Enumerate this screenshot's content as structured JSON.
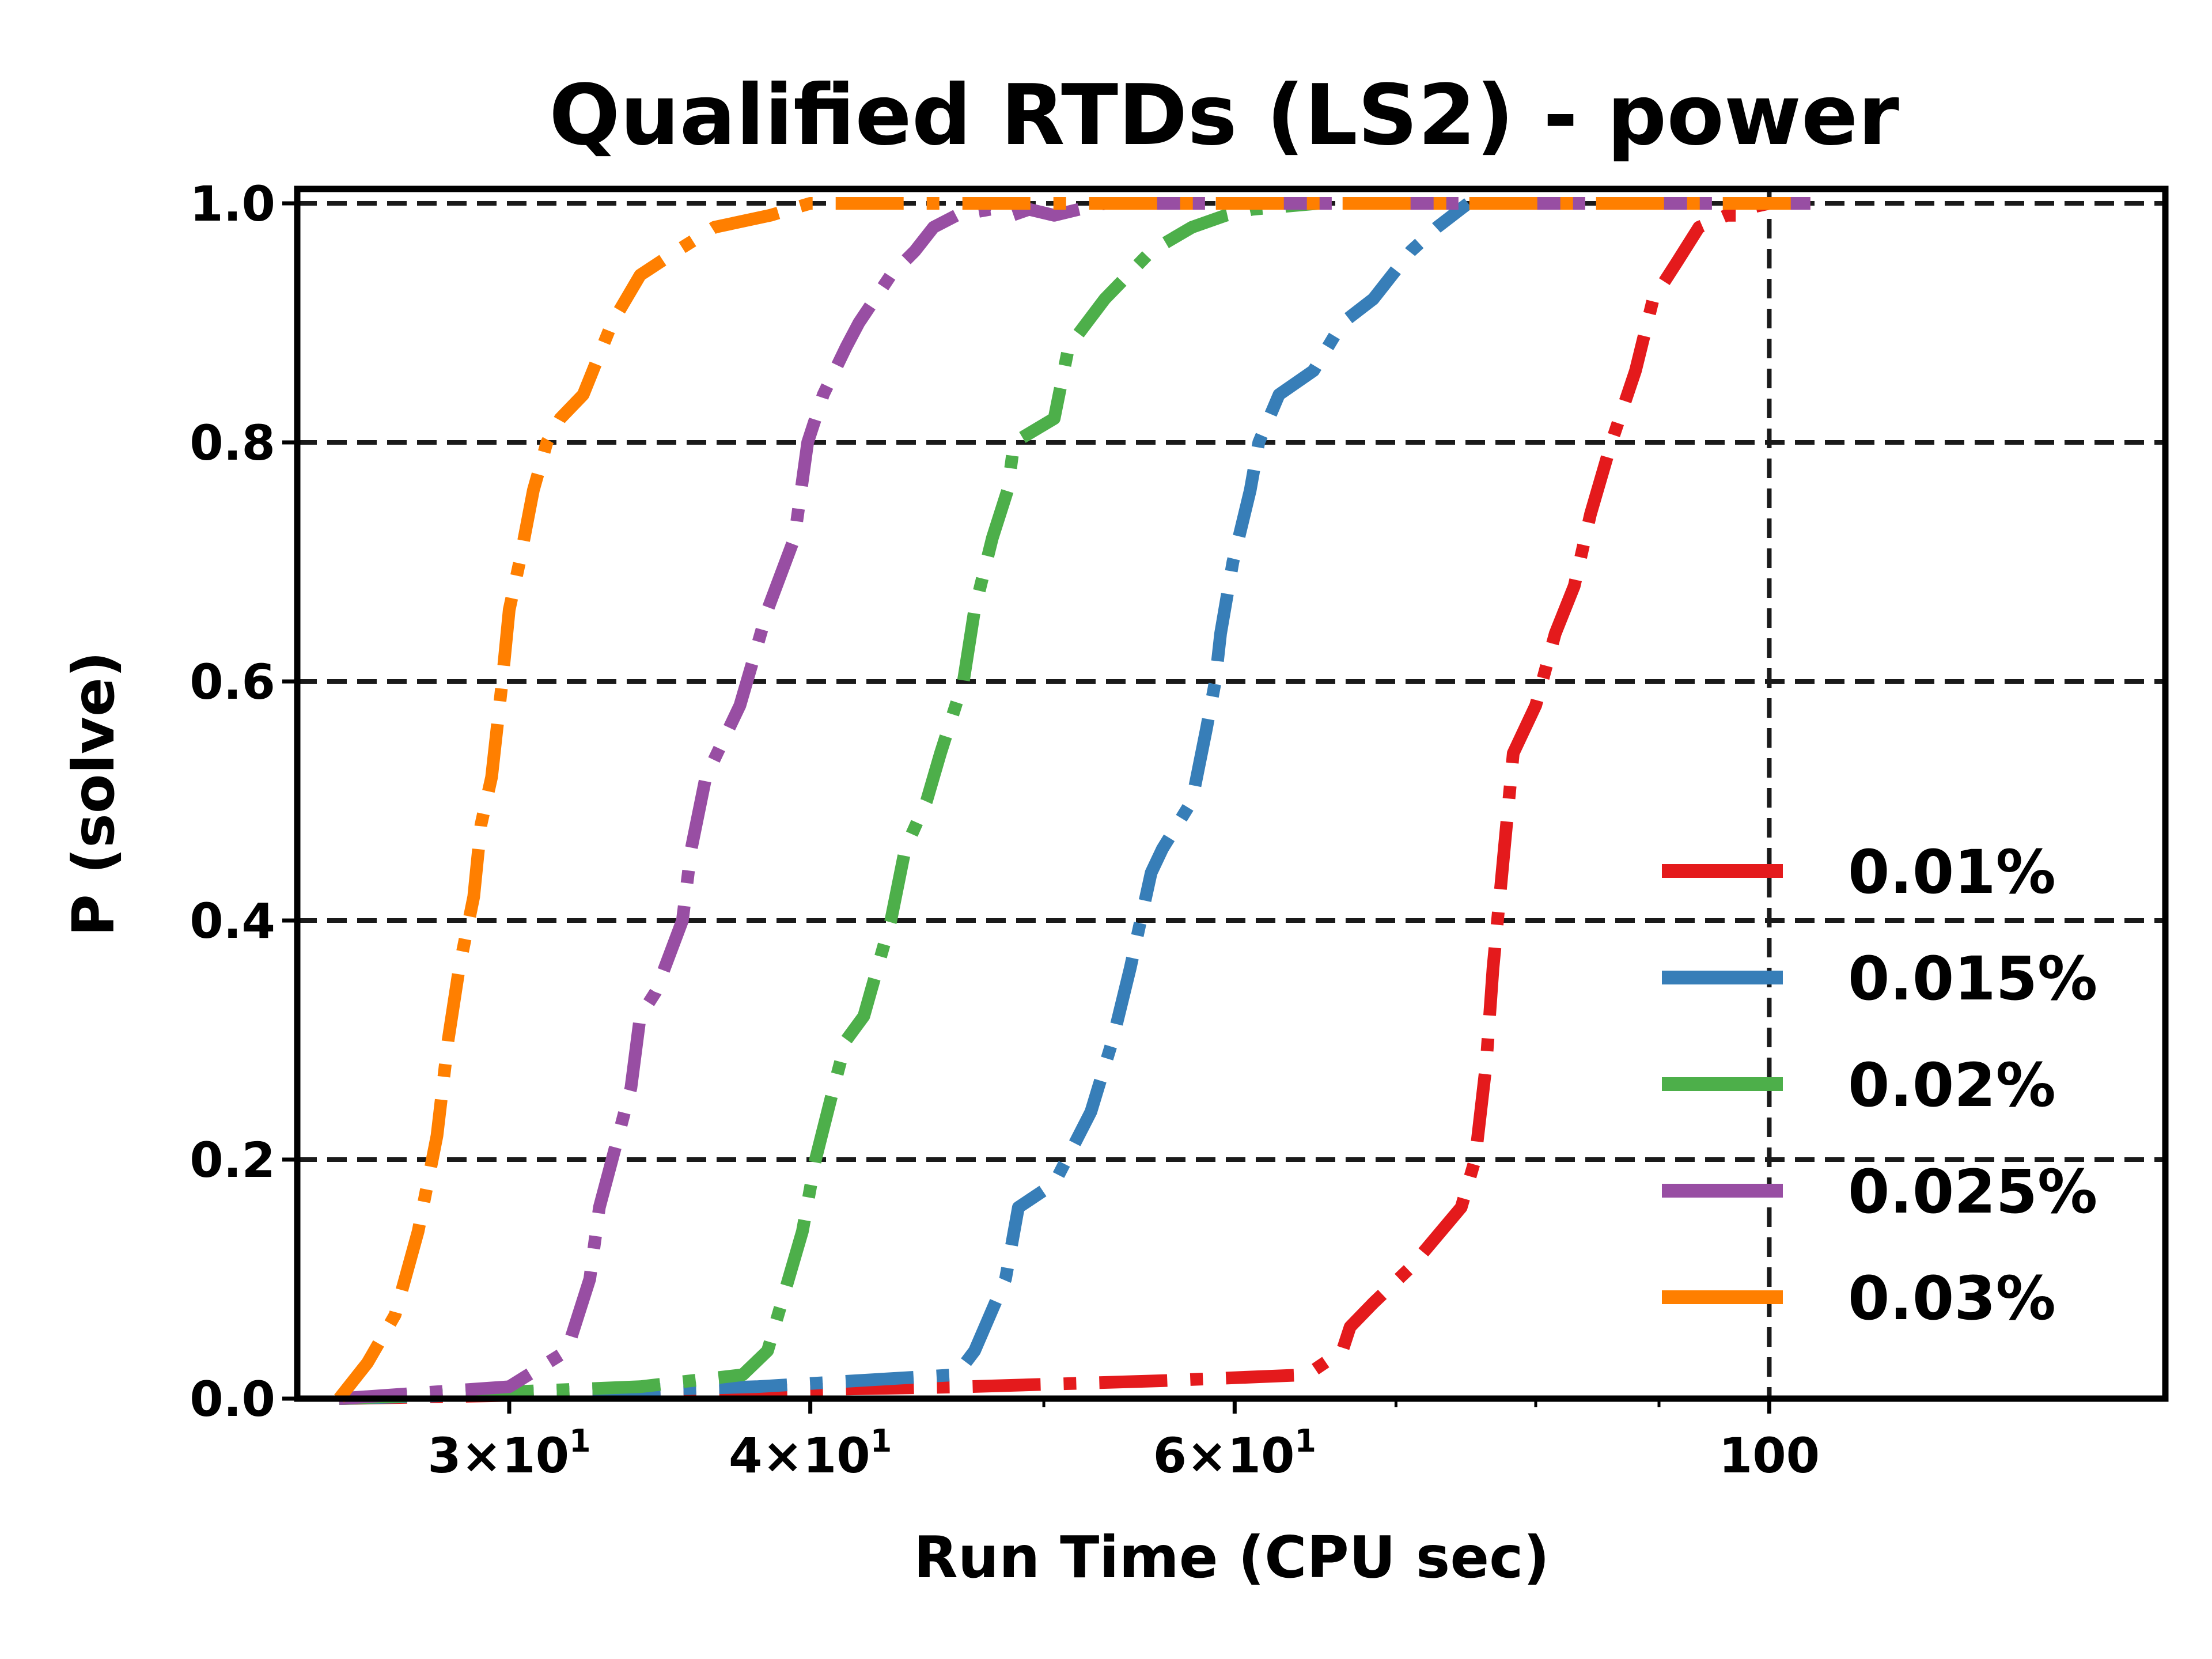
{
  "chart_data": {
    "type": "line",
    "title": "Qualified RTDs (LS2) - power",
    "xlabel": "Run Time (CPU sec)",
    "ylabel": "P (solve)",
    "xscale": "log",
    "xlim": [
      24.5,
      146
    ],
    "ylim": [
      0,
      1.0
    ],
    "grid": "dashed at y ticks and at x = 100",
    "legend_position": "lower-right",
    "xticks": [
      {
        "value": 30,
        "label_base": "3",
        "label_mult": "×10",
        "label_exp": "1"
      },
      {
        "value": 40,
        "label_base": "4",
        "label_mult": "×10",
        "label_exp": "1"
      },
      {
        "value": 60,
        "label_base": "6",
        "label_mult": "×10",
        "label_exp": "1"
      },
      {
        "value": 100,
        "label": "100"
      }
    ],
    "yticks": [
      "0.0",
      "0.2",
      "0.4",
      "0.6",
      "0.8",
      "1.0"
    ],
    "series": [
      {
        "name": "0.01%",
        "color": "#e41a1c",
        "x": [
          25.5,
          46.5,
          56,
          64.3,
          66.5,
          67,
          68.5,
          71,
          74.5,
          75.5,
          76.3,
          76.8,
          77.3,
          78.3,
          80,
          81.5,
          83,
          84.3,
          86,
          88,
          89.5,
          91.5,
          93.5,
          96,
          97,
          97.5,
          100,
          104
        ],
        "y": [
          0.0,
          0.01,
          0.015,
          0.02,
          0.04,
          0.06,
          0.08,
          0.11,
          0.16,
          0.2,
          0.28,
          0.36,
          0.42,
          0.54,
          0.58,
          0.64,
          0.68,
          0.74,
          0.8,
          0.86,
          0.92,
          0.95,
          0.98,
          0.99,
          0.99,
          0.995,
          1.0,
          1.0
        ]
      },
      {
        "name": "0.015%",
        "color": "#377eb8",
        "x": [
          25.5,
          38,
          46,
          46.8,
          48.2,
          48.8,
          50.5,
          52.3,
          53.4,
          54.3,
          55.4,
          56,
          57.6,
          58.4,
          58.9,
          59.2,
          59.9,
          60.9,
          61.4,
          62.6,
          64.7,
          66.5,
          68.5,
          71,
          72.8,
          75
        ],
        "y": [
          0.0,
          0.01,
          0.02,
          0.04,
          0.1,
          0.16,
          0.18,
          0.24,
          0.3,
          0.36,
          0.44,
          0.46,
          0.5,
          0.56,
          0.6,
          0.64,
          0.7,
          0.76,
          0.8,
          0.84,
          0.86,
          0.9,
          0.92,
          0.96,
          0.98,
          1.0
        ]
      },
      {
        "name": "0.02%",
        "color": "#4daf4a",
        "x": [
          25.5,
          34,
          37.5,
          38.4,
          39.7,
          40.2,
          40.9,
          41.4,
          42.1,
          43.2,
          43.8,
          44.7,
          45.3,
          46.3,
          46.8,
          47.6,
          48.3,
          48.6,
          50.5,
          51.2,
          53,
          55.4,
          57.6,
          59.5,
          61,
          65
        ],
        "y": [
          0.0,
          0.01,
          0.02,
          0.04,
          0.14,
          0.2,
          0.26,
          0.3,
          0.32,
          0.4,
          0.46,
          0.5,
          0.54,
          0.6,
          0.66,
          0.72,
          0.76,
          0.8,
          0.82,
          0.88,
          0.92,
          0.96,
          0.98,
          0.99,
          0.995,
          1.0
        ]
      },
      {
        "name": "0.025%",
        "color": "#984ea3",
        "x": [
          25.5,
          30,
          31.7,
          32.4,
          32.7,
          33.1,
          33.7,
          34,
          34.5,
          35.4,
          35.7,
          36.2,
          37.4,
          37.9,
          38.4,
          39.4,
          39.9,
          40.5,
          41.4,
          41.9,
          43.2,
          44.2,
          45,
          46,
          47.5,
          48.5,
          49.3,
          50.5,
          51.7,
          53,
          56,
          60,
          70,
          104
        ],
        "y": [
          0.0,
          0.01,
          0.04,
          0.1,
          0.16,
          0.2,
          0.26,
          0.32,
          0.34,
          0.4,
          0.46,
          0.52,
          0.58,
          0.62,
          0.66,
          0.72,
          0.8,
          0.84,
          0.88,
          0.9,
          0.94,
          0.96,
          0.98,
          0.99,
          0.995,
          0.99,
          0.995,
          0.99,
          0.995,
          1.0,
          1.0,
          1.0,
          1.0,
          1.0
        ]
      },
      {
        "name": "0.03%",
        "color": "#ff7f00",
        "x": [
          25.5,
          26.2,
          26.9,
          27.5,
          28,
          28.3,
          28.6,
          29,
          29.2,
          29.5,
          29.8,
          30,
          30.3,
          30.7,
          31.1,
          31.5,
          32.2,
          33.1,
          34,
          35.2,
          36.5,
          38.5,
          40,
          45,
          55,
          70,
          100,
          104
        ],
        "y": [
          0.0,
          0.03,
          0.07,
          0.14,
          0.22,
          0.3,
          0.36,
          0.42,
          0.48,
          0.52,
          0.6,
          0.66,
          0.7,
          0.76,
          0.8,
          0.82,
          0.84,
          0.9,
          0.94,
          0.96,
          0.98,
          0.99,
          1.0,
          1.0,
          1.0,
          1.0,
          1.0,
          1.0
        ]
      }
    ]
  }
}
